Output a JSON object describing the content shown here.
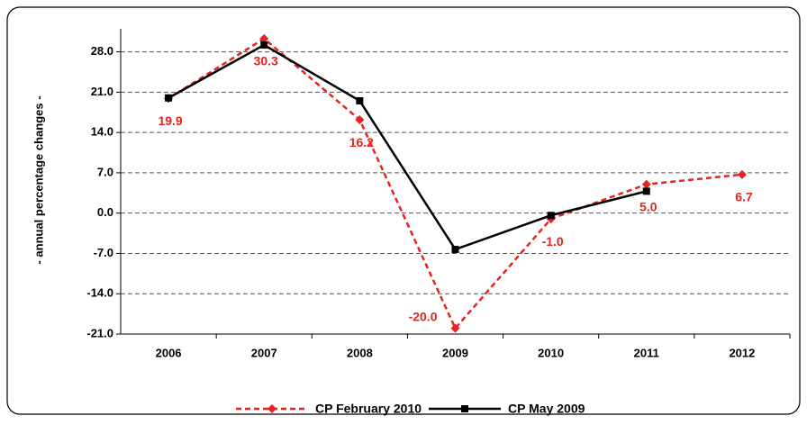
{
  "chart_data": {
    "type": "line",
    "y_label": "- annual percentage changes -",
    "categories": [
      "2006",
      "2007",
      "2008",
      "2009",
      "2010",
      "2011",
      "2012"
    ],
    "ylim": [
      -21,
      32
    ],
    "yticks": [
      {
        "value": -21,
        "label": "-21.0"
      },
      {
        "value": -14,
        "label": "-14.0"
      },
      {
        "value": -7,
        "label": "-7.0"
      },
      {
        "value": 0,
        "label": "0.0"
      },
      {
        "value": 7,
        "label": "7.0"
      },
      {
        "value": 14,
        "label": "14.0"
      },
      {
        "value": 21,
        "label": "21.0"
      },
      {
        "value": 28,
        "label": "28.0"
      }
    ],
    "grid": true,
    "legend": "bottom",
    "series": [
      {
        "name": "CP February 2010",
        "color": "#e8231f",
        "dash": true,
        "marker": "diamond",
        "values": [
          19.9,
          30.3,
          16.2,
          -20.0,
          -1.0,
          5.0,
          6.7
        ],
        "value_labels": [
          "19.9",
          "30.3",
          "16.2",
          "-20.0",
          "-1.0",
          "5.0",
          "6.7"
        ]
      },
      {
        "name": "CP May 2009",
        "color": "#000000",
        "dash": false,
        "marker": "square",
        "values": [
          20.0,
          29.2,
          19.5,
          -6.3,
          -0.4,
          3.8,
          null
        ]
      }
    ]
  }
}
